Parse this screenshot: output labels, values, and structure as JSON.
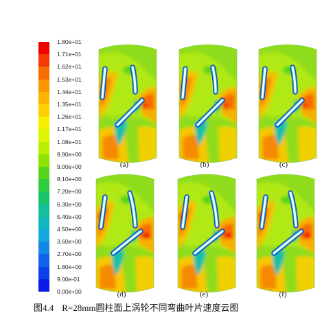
{
  "colorbar": {
    "labels": [
      "1.80e+01",
      "1.71e+01",
      "1.62e+01",
      "1.53e+01",
      "1.44e+01",
      "1.35e+01",
      "1.26e+01",
      "1.17e+01",
      "1.08e+01",
      "9.90e+00",
      "9.00e+00",
      "8.10e+00",
      "7.20e+00",
      "6.30e+00",
      "5.40e+00",
      "4.50e+00",
      "3.60e+00",
      "2.70e+00",
      "1.80e+00",
      "9.00e-01",
      "0.00e+00"
    ],
    "colors": [
      "#f20000",
      "#f53a00",
      "#f86e00",
      "#fb9600",
      "#fdb400",
      "#fdd000",
      "#f6ef00",
      "#dcf500",
      "#b8ee00",
      "#8fe200",
      "#55d41c",
      "#2fcc3e",
      "#18c56b",
      "#12c09a",
      "#12b8c0",
      "#14a8dc",
      "#1388e8",
      "#1064ec",
      "#0c40ec",
      "#0a1ae8"
    ]
  },
  "panels": [
    {
      "id": "a",
      "label": "(a)"
    },
    {
      "id": "b",
      "label": "(b)"
    },
    {
      "id": "c",
      "label": "(c)"
    },
    {
      "id": "d",
      "label": "(d)"
    },
    {
      "id": "e",
      "label": "(e)"
    },
    {
      "id": "f",
      "label": "(f)"
    }
  ],
  "caption": {
    "number": "图4.4",
    "text": "R=28mm圆柱面上涡轮不同弯曲叶片速度云图"
  }
}
